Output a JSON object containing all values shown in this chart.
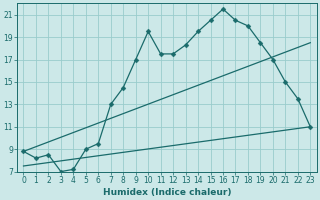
{
  "xlabel": "Humidex (Indice chaleur)",
  "bg_color": "#cce8e8",
  "grid_color": "#99cccc",
  "line_color": "#1a6b6b",
  "xlim": [
    -0.5,
    23.5
  ],
  "ylim": [
    7,
    22
  ],
  "xticks": [
    0,
    1,
    2,
    3,
    4,
    5,
    6,
    7,
    8,
    9,
    10,
    11,
    12,
    13,
    14,
    15,
    16,
    17,
    18,
    19,
    20,
    21,
    22,
    23
  ],
  "yticks": [
    7,
    9,
    11,
    13,
    15,
    17,
    19,
    21
  ],
  "series1_x": [
    0,
    1,
    2,
    3,
    4,
    5,
    6,
    7,
    8,
    9,
    10,
    11,
    12,
    13,
    14,
    15,
    16,
    17,
    18,
    19,
    20,
    21,
    22,
    23
  ],
  "series1_y": [
    8.8,
    8.2,
    8.5,
    7.0,
    7.2,
    9.0,
    9.5,
    13.0,
    14.5,
    17.0,
    19.5,
    17.5,
    17.5,
    18.3,
    19.5,
    20.5,
    21.5,
    20.5,
    20.0,
    18.5,
    17.0,
    15.0,
    13.5,
    11.0
  ],
  "series2_x": [
    0,
    23
  ],
  "series2_y": [
    8.8,
    18.5
  ],
  "series3_x": [
    0,
    23
  ],
  "series3_y": [
    7.5,
    11.0
  ],
  "figsize": [
    3.2,
    2.0
  ],
  "dpi": 100
}
